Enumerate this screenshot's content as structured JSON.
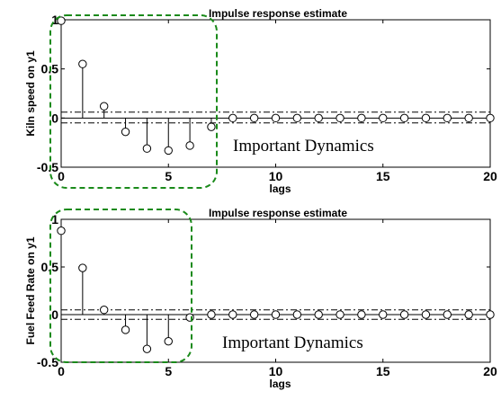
{
  "chart_data": [
    {
      "type": "stem",
      "title": "Impulse response estimate",
      "xlabel": "lags",
      "ylabel": "Kiln speed on y1",
      "xlim": [
        0,
        20
      ],
      "ylim": [
        -0.5,
        1
      ],
      "xticks": [
        "0",
        "5",
        "10",
        "15",
        "20"
      ],
      "yticks": [
        "-0.5",
        "0",
        "0.5",
        "1"
      ],
      "x": [
        0,
        1,
        2,
        3,
        4,
        5,
        6,
        7,
        8,
        9,
        10,
        11,
        12,
        13,
        14,
        15,
        16,
        17,
        18,
        19,
        20
      ],
      "values": [
        0.99,
        0.55,
        0.12,
        -0.14,
        -0.31,
        -0.33,
        -0.28,
        -0.09,
        0.0,
        0.0,
        0.0,
        0.0,
        0.0,
        0.0,
        0.0,
        0.0,
        0.0,
        0.0,
        0.0,
        0.0,
        0.0
      ],
      "confidence_band": [
        0.06,
        -0.05
      ],
      "annotation": "Important Dynamics",
      "highlight_x_range": [
        0,
        7
      ]
    },
    {
      "type": "stem",
      "title": "Impulse response estimate",
      "xlabel": "lags",
      "ylabel": "Fuel Feed Rate on y1",
      "xlim": [
        0,
        20
      ],
      "ylim": [
        -0.5,
        1
      ],
      "xticks": [
        "0",
        "5",
        "10",
        "15",
        "20"
      ],
      "yticks": [
        "-0.5",
        "0",
        "0.5",
        "1"
      ],
      "x": [
        0,
        1,
        2,
        3,
        4,
        5,
        6,
        7,
        8,
        9,
        10,
        11,
        12,
        13,
        14,
        15,
        16,
        17,
        18,
        19,
        20
      ],
      "values": [
        0.88,
        0.49,
        0.05,
        -0.16,
        -0.36,
        -0.28,
        -0.03,
        0.0,
        0.0,
        0.0,
        0.0,
        0.0,
        0.0,
        0.0,
        0.0,
        0.0,
        0.0,
        0.0,
        0.0,
        0.0,
        0.0
      ],
      "confidence_band": [
        0.05,
        -0.05
      ],
      "annotation": "Important Dynamics",
      "highlight_x_range": [
        0,
        6
      ]
    }
  ],
  "style": {
    "stem_color": "#000000",
    "box_color": "#1a8a1a"
  }
}
